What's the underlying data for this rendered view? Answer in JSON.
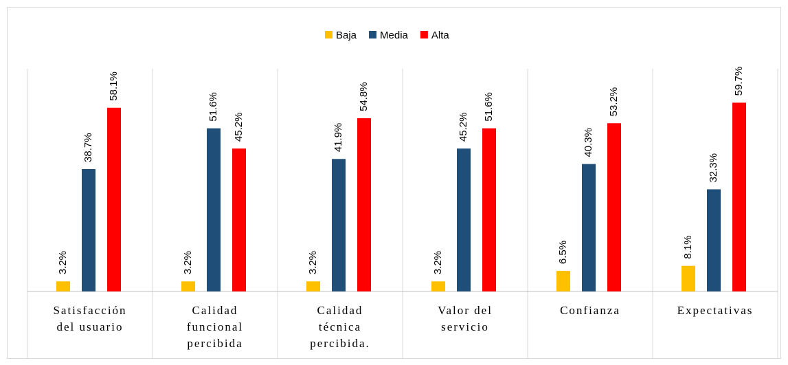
{
  "chart_data": {
    "type": "bar",
    "categories": [
      [
        "Satisfacción",
        "del usuario"
      ],
      [
        "Calidad",
        "funcional",
        "percibida"
      ],
      [
        "Calidad",
        "técnica",
        "percibida."
      ],
      [
        "Valor del",
        "servicio"
      ],
      [
        "Confianza"
      ],
      [
        "Expectativas"
      ]
    ],
    "series": [
      {
        "name": "Baja",
        "color": "#FFC000",
        "values": [
          3.2,
          3.2,
          3.2,
          3.2,
          6.5,
          8.1
        ],
        "value_labels": [
          "3.2%",
          "3.2%",
          "3.2%",
          "3.2%",
          "6.5%",
          "8.1%"
        ]
      },
      {
        "name": "Media",
        "color": "#1F4E79",
        "values": [
          38.7,
          51.6,
          41.9,
          45.2,
          40.3,
          32.3
        ],
        "value_labels": [
          "38.7%",
          "51.6%",
          "41.9%",
          "45.2%",
          "40.3%",
          "32.3%"
        ]
      },
      {
        "name": "Alta",
        "color": "#FF0000",
        "values": [
          58.1,
          45.2,
          54.8,
          51.6,
          53.2,
          59.7
        ],
        "value_labels": [
          "58.1%",
          "45.2%",
          "54.8%",
          "51.6%",
          "53.2%",
          "59.7%"
        ]
      }
    ],
    "ylim": [
      0,
      70
    ],
    "legend": "top"
  }
}
